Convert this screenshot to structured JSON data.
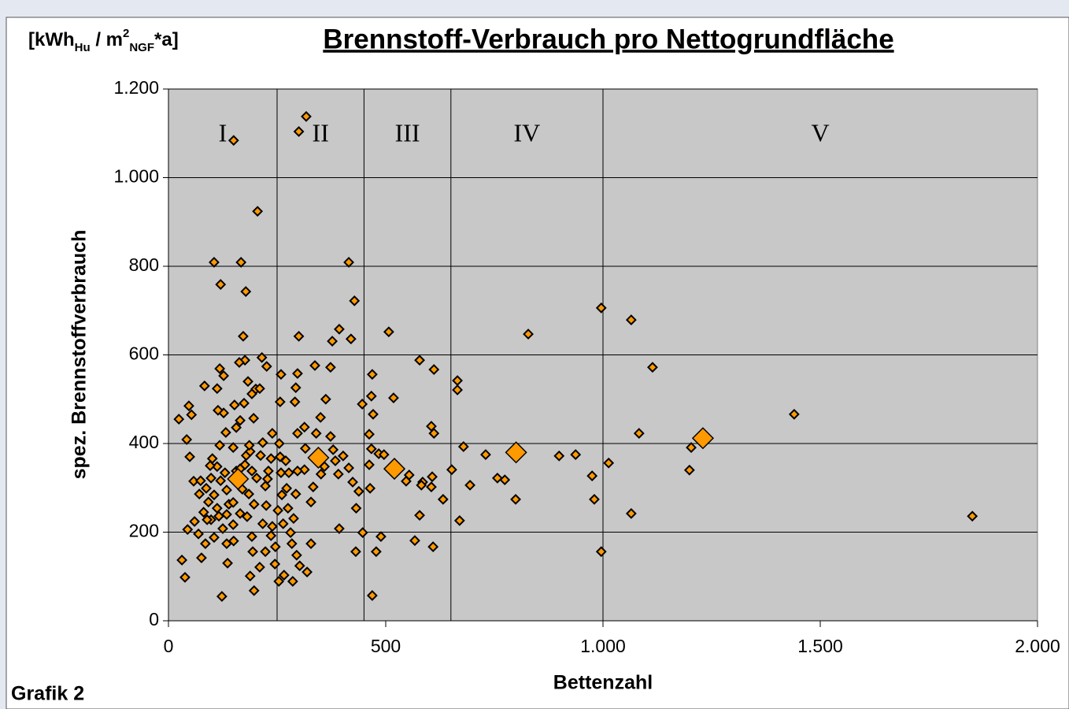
{
  "chart_data": {
    "type": "scatter",
    "title": "Brennstoff-Verbrauch pro Nettogrundfläche",
    "unit_label": {
      "base": "[kWh",
      "sub1": "Hu",
      "mid": " / m",
      "sup": "2",
      "sub2": "NGF",
      "end": "*a]"
    },
    "x_label": "Bettenzahl",
    "y_label": "spez. Brennstoffverbrauch",
    "footer": "Grafik 2",
    "xlim": [
      0,
      2000
    ],
    "xticks": [
      0,
      500,
      {
        "value": 1000,
        "label": "1.000"
      },
      {
        "value": 1500,
        "label": "1.500"
      },
      {
        "value": 2000,
        "label": "2.000"
      }
    ],
    "ylim": [
      0,
      1200
    ],
    "yticks": [
      0,
      200,
      400,
      600,
      800,
      {
        "value": 1000,
        "label": "1.000"
      },
      {
        "value": 1200,
        "label": "1.200"
      }
    ],
    "grid": true,
    "plot_background": "#c8c8c8",
    "dividers": [
      250,
      450,
      650,
      1000
    ],
    "classes": [
      "I",
      "II",
      "III",
      "IV",
      "V"
    ],
    "series": [
      {
        "color": "#ff9900",
        "marker_size": 11,
        "x": [
          150,
          317,
          300,
          205,
          105,
          167,
          415,
          120,
          178,
          428,
          393,
          300,
          172,
          420,
          377,
          507,
          828,
          996,
          1065,
          1114,
          1440,
          1850,
          996,
          1065,
          980,
          975,
          1013,
          1083,
          1199,
          1203,
          899,
          937,
          578,
          611,
          665,
          665,
          518,
          469,
          605,
          611,
          679,
          730,
          774,
          757,
          799,
          694,
          652,
          670,
          607,
          605,
          585,
          632,
          609,
          567,
          578,
          582,
          547,
          554,
          467,
          471,
          446,
          462,
          467,
          484,
          496,
          489,
          478,
          469,
          447,
          431,
          432,
          462,
          464,
          438,
          424,
          391,
          393,
          402,
          415,
          379,
          384,
          359,
          350,
          344,
          351,
          340,
          362,
          373,
          313,
          315,
          313,
          328,
          333,
          328,
          319,
          302,
          295,
          286,
          297,
          293,
          297,
          291,
          337,
          373,
          259,
          257,
          226,
          215,
          24,
          47,
          53,
          42,
          49,
          58,
          74,
          87,
          71,
          92,
          60,
          69,
          44,
          31,
          38,
          76,
          85,
          105,
          98,
          125,
          123,
          136,
          134,
          150,
          149,
          112,
          130,
          101,
          118,
          132,
          127,
          114,
          112,
          83,
          127,
          118,
          156,
          165,
          152,
          174,
          176,
          163,
          183,
          192,
          201,
          210,
          196,
          179,
          192,
          188,
          212,
          203,
          185,
          197,
          181,
          192,
          194,
          188,
          197,
          210,
          217,
          225,
          223,
          230,
          236,
          239,
          217,
          228,
          239,
          246,
          245,
          236,
          223,
          255,
          257,
          259,
          261,
          252,
          264,
          254,
          266,
          272,
          275,
          281,
          284,
          288,
          293,
          297,
          277,
          270,
          139,
          134,
          149,
          165,
          170,
          156,
          176,
          149,
          120,
          105,
          112,
          89,
          81,
          96,
          98,
          116,
          134,
          165,
          186
        ],
        "values": [
          1084,
          1138,
          1104,
          924,
          809,
          809,
          809,
          759,
          743,
          722,
          658,
          642,
          642,
          636,
          631,
          652,
          647,
          706,
          679,
          572,
          466,
          236,
          156,
          242,
          274,
          327,
          356,
          423,
          340,
          391,
          372,
          375,
          588,
          567,
          542,
          521,
          503,
          556,
          439,
          423,
          393,
          375,
          318,
          322,
          274,
          306,
          341,
          226,
          325,
          302,
          313,
          274,
          167,
          181,
          238,
          306,
          315,
          329,
          507,
          466,
          489,
          421,
          388,
          377,
          375,
          190,
          156,
          57,
          199,
          156,
          254,
          352,
          299,
          292,
          313,
          331,
          208,
          372,
          345,
          386,
          361,
          348,
          459,
          379,
          331,
          423,
          500,
          416,
          437,
          389,
          341,
          268,
          302,
          174,
          110,
          124,
          148,
          89,
          423,
          526,
          558,
          494,
          576,
          572,
          556,
          494,
          574,
          594,
          455,
          485,
          465,
          409,
          370,
          315,
          316,
          299,
          286,
          268,
          224,
          196,
          206,
          137,
          98,
          142,
          174,
          188,
          228,
          208,
          55,
          130,
          174,
          180,
          217,
          348,
          334,
          366,
          396,
          425,
          469,
          475,
          524,
          530,
          553,
          569,
          436,
          452,
          487,
          491,
          588,
          583,
          540,
          512,
          523,
          524,
          457,
          373,
          338,
          382,
          373,
          322,
          286,
          263,
          235,
          190,
          156,
          101,
          68,
          121,
          219,
          260,
          304,
          338,
          366,
          423,
          402,
          320,
          213,
          167,
          128,
          192,
          156,
          400,
          370,
          334,
          284,
          249,
          219,
          89,
          103,
          299,
          254,
          199,
          174,
          231,
          286,
          338,
          334,
          361,
          263,
          295,
          267,
          242,
          297,
          338,
          352,
          391,
          316,
          284,
          254,
          228,
          245,
          350,
          322,
          236,
          240,
          343,
          396
        ]
      },
      {
        "color": "#ff9900",
        "marker_size": 26,
        "x": [
          160,
          345,
          520,
          800,
          1230
        ],
        "values": [
          320,
          368,
          343,
          380,
          412
        ]
      }
    ]
  }
}
